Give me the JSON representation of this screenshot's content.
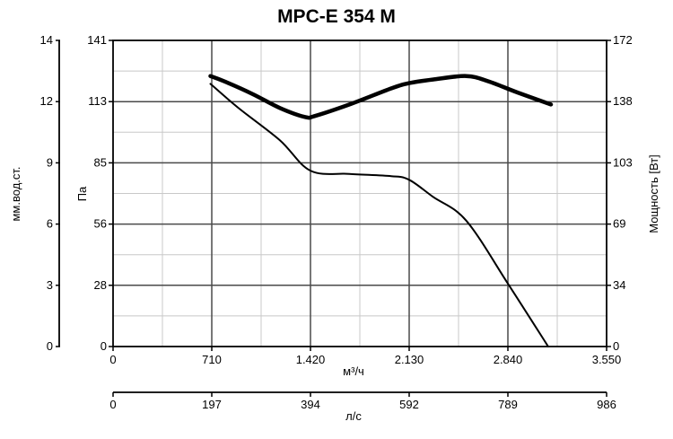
{
  "chart_data": {
    "type": "line",
    "title": "MPC-E 354 M",
    "x": {
      "label": "м³/ч",
      "ticks": [
        "0",
        "710",
        "1.420",
        "2.130",
        "2.840",
        "3.550"
      ],
      "range": [
        0,
        3550
      ]
    },
    "x_secondary": {
      "label": "л/с",
      "ticks": [
        "0",
        "197",
        "394",
        "592",
        "789",
        "986"
      ],
      "range": [
        0,
        986
      ]
    },
    "y_left_outer": {
      "label": "мм.вод.ст.",
      "ticks": [
        "0",
        "3",
        "6",
        "9",
        "12",
        "14"
      ],
      "range": [
        0,
        14
      ]
    },
    "y_left": {
      "label": "Па",
      "ticks": [
        "0",
        "28",
        "56",
        "85",
        "113",
        "141"
      ],
      "range": [
        0,
        141
      ]
    },
    "y_right": {
      "label": "Мощность [Вт]",
      "ticks": [
        "0",
        "34",
        "69",
        "103",
        "138",
        "172"
      ],
      "range": [
        0,
        172
      ]
    },
    "grid": true,
    "series": [
      {
        "kind": "pressure",
        "axis": "y_left",
        "units": "Па",
        "x": [
          700,
          900,
          1200,
          1420,
          1700,
          2000,
          2130,
          2300,
          2540,
          2840,
          3130
        ],
        "y": [
          121,
          110,
          95,
          81,
          79.5,
          78.5,
          76.8,
          69,
          58,
          29,
          0
        ]
      },
      {
        "kind": "power",
        "axis": "y_right",
        "units": "Вт",
        "x": [
          700,
          800,
          1000,
          1200,
          1380,
          1450,
          1700,
          2000,
          2130,
          2300,
          2540,
          2700,
          2900,
          3150
        ],
        "y": [
          152,
          149,
          142,
          134,
          129,
          129.5,
          136,
          145,
          148,
          150,
          152,
          149,
          143,
          136
        ]
      }
    ]
  }
}
